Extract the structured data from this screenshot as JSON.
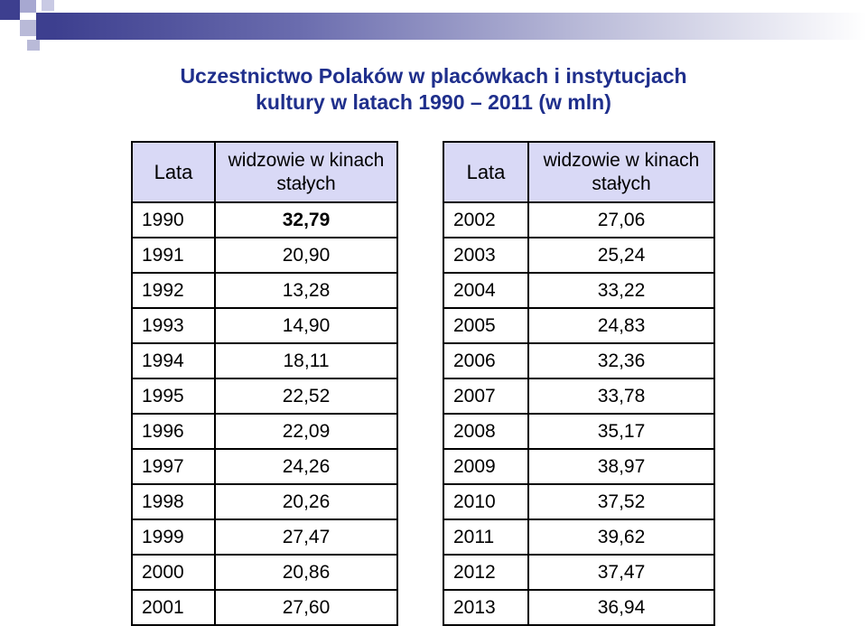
{
  "title": {
    "line1": "Uczestnictwo Polaków w placówkach i instytucjach",
    "line2": "kultury w latach 1990 – 2011 (w mln)"
  },
  "colors": {
    "title": "#1f2f8c",
    "header_bg": "#d9d9f6",
    "accent": "#3d3f8f"
  },
  "tables": [
    {
      "header_year": "Lata",
      "header_value": "widzowie w kinach stałych",
      "rows": [
        {
          "year": "1990",
          "value": "32,79"
        },
        {
          "year": "1991",
          "value": "20,90"
        },
        {
          "year": "1992",
          "value": "13,28"
        },
        {
          "year": "1993",
          "value": "14,90"
        },
        {
          "year": "1994",
          "value": "18,11"
        },
        {
          "year": "1995",
          "value": "22,52"
        },
        {
          "year": "1996",
          "value": "22,09"
        },
        {
          "year": "1997",
          "value": "24,26"
        },
        {
          "year": "1998",
          "value": "20,26"
        },
        {
          "year": "1999",
          "value": "27,47"
        },
        {
          "year": "2000",
          "value": "20,86"
        },
        {
          "year": "2001",
          "value": "27,60"
        }
      ]
    },
    {
      "header_year": "Lata",
      "header_value": "widzowie w kinach stałych",
      "rows": [
        {
          "year": "2002",
          "value": "27,06"
        },
        {
          "year": "2003",
          "value": "25,24"
        },
        {
          "year": "2004",
          "value": "33,22"
        },
        {
          "year": "2005",
          "value": "24,83"
        },
        {
          "year": "2006",
          "value": "32,36"
        },
        {
          "year": "2007",
          "value": "33,78"
        },
        {
          "year": "2008",
          "value": "35,17"
        },
        {
          "year": "2009",
          "value": "38,97"
        },
        {
          "year": "2010",
          "value": "37,52"
        },
        {
          "year": "2011",
          "value": "39,62"
        },
        {
          "year": "2012",
          "value": "37,47"
        },
        {
          "year": "2013",
          "value": "36,94"
        }
      ]
    }
  ]
}
